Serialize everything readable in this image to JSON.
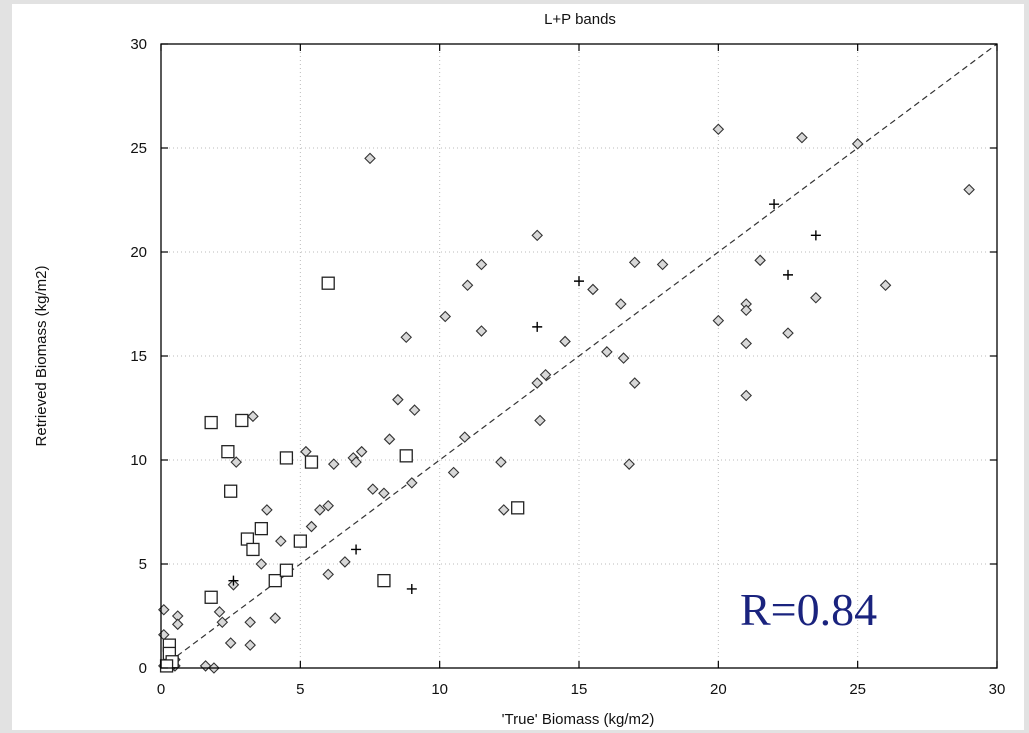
{
  "chart_data": {
    "type": "scatter",
    "title": "L+P bands",
    "xlabel": "'True'  Biomass  (kg/m2)",
    "ylabel": "Retrieved   Biomass  (kg/m2)",
    "xlim": [
      0,
      30
    ],
    "ylim": [
      0,
      30
    ],
    "x_ticks": [
      0,
      5,
      10,
      15,
      20,
      25,
      30
    ],
    "y_ticks": [
      0,
      5,
      10,
      15,
      20,
      25,
      30
    ],
    "grid": true,
    "annotation": "R=0.84",
    "reference_line": {
      "x": [
        0,
        30
      ],
      "y": [
        0,
        30
      ],
      "style": "dashed"
    },
    "series": [
      {
        "marker": "diamond",
        "points": [
          [
            0.1,
            2.8
          ],
          [
            0.1,
            1.6
          ],
          [
            0.6,
            2.5
          ],
          [
            0.6,
            2.1
          ],
          [
            0.2,
            0.2
          ],
          [
            0.5,
            0.1
          ],
          [
            0.3,
            0.1
          ],
          [
            0.4,
            0.5
          ],
          [
            0.1,
            0.1
          ],
          [
            0.5,
            0.4
          ],
          [
            0.4,
            0.1
          ],
          [
            1.6,
            0.1
          ],
          [
            1.9,
            0.0
          ],
          [
            2.1,
            2.7
          ],
          [
            2.2,
            2.2
          ],
          [
            2.5,
            1.2
          ],
          [
            2.6,
            4.0
          ],
          [
            2.7,
            9.9
          ],
          [
            3.2,
            1.1
          ],
          [
            3.2,
            2.2
          ],
          [
            3.3,
            12.1
          ],
          [
            3.6,
            5.0
          ],
          [
            3.8,
            7.6
          ],
          [
            4.1,
            2.4
          ],
          [
            4.3,
            6.1
          ],
          [
            5.2,
            10.4
          ],
          [
            5.4,
            6.8
          ],
          [
            5.7,
            7.6
          ],
          [
            6.0,
            7.8
          ],
          [
            6.0,
            4.5
          ],
          [
            6.2,
            9.8
          ],
          [
            6.6,
            5.1
          ],
          [
            6.9,
            10.1
          ],
          [
            7.0,
            9.9
          ],
          [
            7.2,
            10.4
          ],
          [
            7.5,
            24.5
          ],
          [
            7.6,
            8.6
          ],
          [
            8.0,
            8.4
          ],
          [
            8.2,
            11.0
          ],
          [
            8.5,
            12.9
          ],
          [
            8.8,
            15.9
          ],
          [
            9.0,
            8.9
          ],
          [
            9.1,
            12.4
          ],
          [
            10.2,
            16.9
          ],
          [
            10.5,
            9.4
          ],
          [
            10.9,
            11.1
          ],
          [
            11.0,
            18.4
          ],
          [
            11.5,
            19.4
          ],
          [
            11.5,
            16.2
          ],
          [
            12.2,
            9.9
          ],
          [
            12.3,
            7.6
          ],
          [
            13.5,
            20.8
          ],
          [
            13.5,
            13.7
          ],
          [
            13.6,
            11.9
          ],
          [
            13.8,
            14.1
          ],
          [
            14.5,
            15.7
          ],
          [
            15.5,
            18.2
          ],
          [
            16.0,
            15.2
          ],
          [
            16.5,
            17.5
          ],
          [
            16.6,
            14.9
          ],
          [
            16.8,
            9.8
          ],
          [
            17.0,
            19.5
          ],
          [
            17.0,
            13.7
          ],
          [
            18.0,
            19.4
          ],
          [
            20.0,
            25.9
          ],
          [
            20.0,
            16.7
          ],
          [
            21.0,
            17.5
          ],
          [
            21.0,
            17.2
          ],
          [
            21.0,
            15.6
          ],
          [
            21.0,
            13.1
          ],
          [
            21.5,
            19.6
          ],
          [
            22.5,
            16.1
          ],
          [
            23.0,
            25.5
          ],
          [
            23.5,
            17.8
          ],
          [
            25.0,
            25.2
          ],
          [
            26.0,
            18.4
          ],
          [
            29.0,
            23.0
          ]
        ]
      },
      {
        "marker": "square",
        "points": [
          [
            0.3,
            1.1
          ],
          [
            0.3,
            0.7
          ],
          [
            0.4,
            0.3
          ],
          [
            0.2,
            0.1
          ],
          [
            1.8,
            11.8
          ],
          [
            1.8,
            3.4
          ],
          [
            2.4,
            10.4
          ],
          [
            2.5,
            8.5
          ],
          [
            2.9,
            11.9
          ],
          [
            3.1,
            6.2
          ],
          [
            3.3,
            5.7
          ],
          [
            3.6,
            6.7
          ],
          [
            4.1,
            4.2
          ],
          [
            4.5,
            10.1
          ],
          [
            4.5,
            4.7
          ],
          [
            5.0,
            6.1
          ],
          [
            5.4,
            9.9
          ],
          [
            6.0,
            18.5
          ],
          [
            8.0,
            4.2
          ],
          [
            8.8,
            10.2
          ],
          [
            12.8,
            7.7
          ]
        ]
      },
      {
        "marker": "plus",
        "points": [
          [
            2.6,
            4.2
          ],
          [
            7.0,
            5.7
          ],
          [
            9.0,
            3.8
          ],
          [
            13.5,
            16.4
          ],
          [
            15.0,
            18.6
          ],
          [
            22.0,
            22.3
          ],
          [
            22.5,
            18.9
          ],
          [
            23.5,
            20.8
          ]
        ]
      }
    ]
  }
}
